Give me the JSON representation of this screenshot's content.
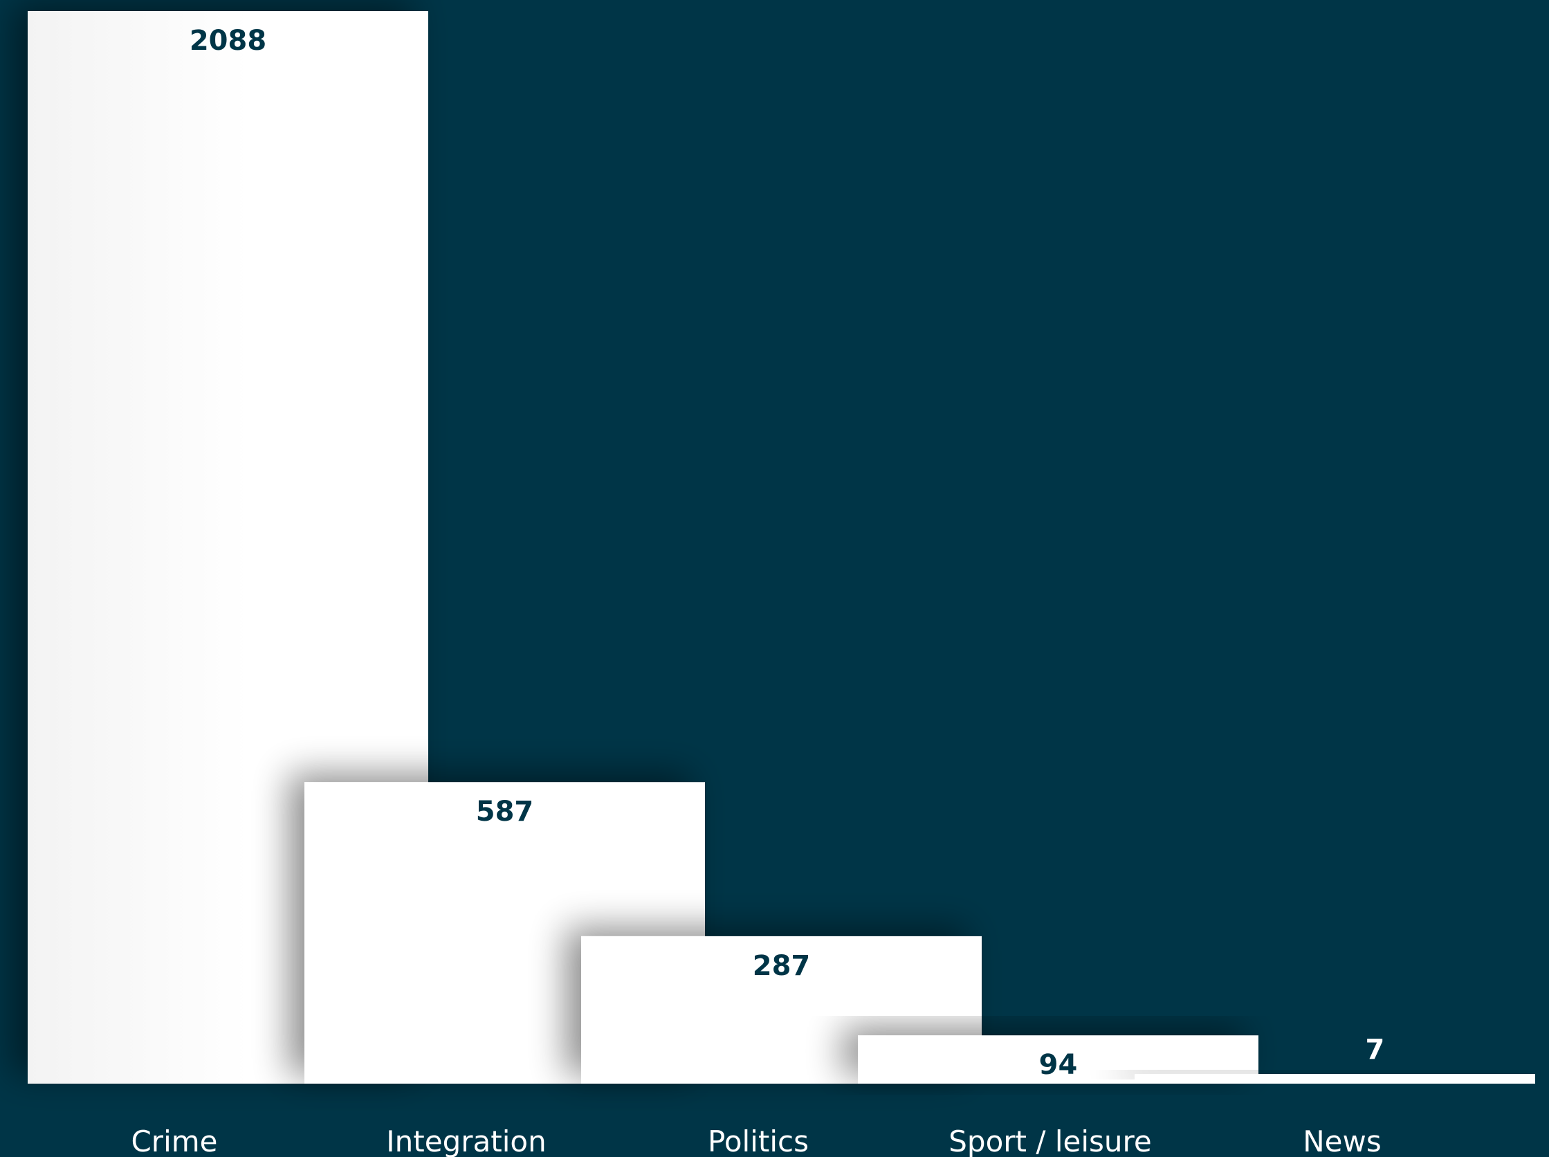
{
  "chart_data": {
    "type": "bar",
    "categories": [
      "Crime",
      "Integration",
      "Politics",
      "Sport / leisure",
      "News"
    ],
    "values": [
      2088,
      587,
      287,
      94,
      7
    ],
    "value_labels": [
      "2088",
      "587",
      "287",
      "94",
      "7"
    ],
    "ylim": [
      0,
      2088
    ],
    "grid": false,
    "legend": "none"
  },
  "colors": {
    "background": "#003547",
    "bar": "#ffffff",
    "value_text": "#003547",
    "category_text": "#ffffff"
  }
}
